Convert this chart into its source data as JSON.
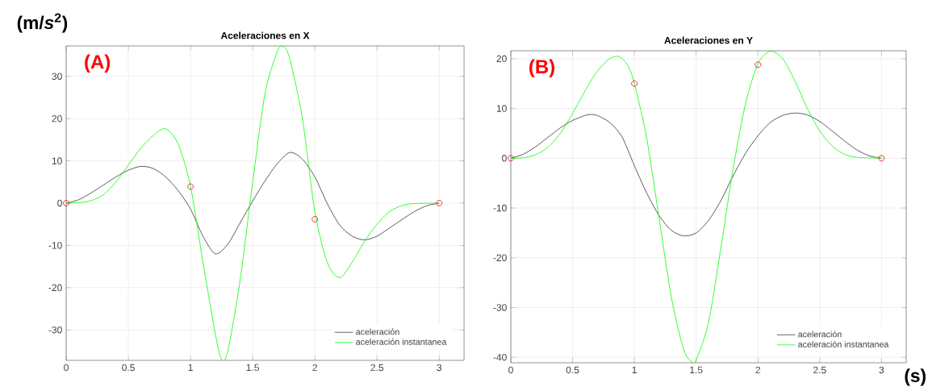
{
  "chart_data": [
    {
      "type": "line",
      "title": "Aceleraciones en X",
      "ylabel": "(m/*s*$^{2}$)",
      "annotations": [
        "(A)"
      ],
      "xlim": [
        0,
        3.2
      ],
      "ylim": [
        -37.2,
        37.2
      ],
      "xticks": [
        0,
        0.5,
        1,
        1.5,
        2,
        2.5,
        3
      ],
      "yticks": [
        -30,
        -20,
        -10,
        0,
        10,
        20,
        30
      ],
      "grid": true,
      "legend": "bottom right",
      "series": [
        {
          "name": "aceleración",
          "color": "#333333",
          "x": [
            0,
            0.1,
            0.2,
            0.3,
            0.4,
            0.5,
            0.6,
            0.7,
            0.8,
            0.9,
            1.0,
            1.1,
            1.2,
            1.3,
            1.4,
            1.5,
            1.6,
            1.7,
            1.8,
            1.9,
            2.0,
            2.1,
            2.2,
            2.3,
            2.4,
            2.5,
            2.6,
            2.7,
            2.8,
            2.9,
            3.0
          ],
          "values": [
            0,
            0.8,
            2.4,
            4.3,
            6.2,
            7.8,
            8.7,
            8.2,
            6.2,
            3,
            -1.4,
            -7.8,
            -12,
            -9.7,
            -4.6,
            0.5,
            5.3,
            9.4,
            12,
            10.4,
            6.2,
            -0.1,
            -5.2,
            -7.8,
            -8.7,
            -7.8,
            -5.9,
            -3.9,
            -2,
            -0.6,
            0
          ]
        },
        {
          "name": "aceleración instantanea",
          "color": "#00ff00",
          "x": [
            0,
            0.1,
            0.2,
            0.3,
            0.4,
            0.5,
            0.6,
            0.7,
            0.8,
            0.9,
            1.0,
            1.1,
            1.2,
            1.25,
            1.3,
            1.4,
            1.5,
            1.6,
            1.7,
            1.75,
            1.8,
            1.9,
            2.0,
            2.1,
            2.2,
            2.3,
            2.4,
            2.5,
            2.6,
            2.7,
            2.8,
            3.0
          ],
          "values": [
            0,
            0.1,
            0.6,
            2,
            5,
            9,
            13,
            16,
            17.6,
            14,
            4,
            -14,
            -31,
            -37,
            -35,
            -18,
            5,
            26,
            36,
            37,
            34,
            20,
            -2,
            -14,
            -17.6,
            -14,
            -9,
            -5,
            -2,
            -0.6,
            -0.1,
            0
          ]
        },
        {
          "type": "scatter",
          "marker": "circle",
          "color": "#ff0000",
          "x": [
            0,
            1,
            2,
            3
          ],
          "values": [
            0,
            3.9,
            -3.8,
            0
          ]
        }
      ]
    },
    {
      "type": "line",
      "title": "Aceleraciones en Y",
      "xlabel": "(s)",
      "annotations": [
        "(B)"
      ],
      "xlim": [
        0,
        3.2
      ],
      "ylim": [
        -41.1,
        21.6
      ],
      "xticks": [
        0,
        0.5,
        1,
        1.5,
        2,
        2.5,
        3
      ],
      "yticks": [
        -40,
        -30,
        -20,
        -10,
        0,
        10,
        20
      ],
      "grid": true,
      "legend": "bottom right",
      "series": [
        {
          "name": "aceleración",
          "color": "#333333",
          "x": [
            0,
            0.1,
            0.2,
            0.3,
            0.4,
            0.5,
            0.6,
            0.65,
            0.7,
            0.8,
            0.9,
            1.0,
            1.1,
            1.2,
            1.3,
            1.4,
            1.5,
            1.6,
            1.7,
            1.8,
            1.9,
            2.0,
            2.1,
            2.2,
            2.3,
            2.4,
            2.5,
            2.6,
            2.7,
            2.8,
            2.9,
            3.0
          ],
          "values": [
            0,
            0.8,
            2.3,
            4.2,
            6.1,
            7.6,
            8.6,
            8.8,
            8.6,
            7.2,
            4.3,
            -1.5,
            -7,
            -11.5,
            -14.5,
            -15.6,
            -15,
            -12.5,
            -8.5,
            -3.5,
            1,
            4.5,
            7.2,
            8.6,
            9.1,
            8.7,
            7.4,
            5.5,
            3.5,
            1.7,
            0.5,
            0
          ]
        },
        {
          "name": "aceleración instantanea",
          "color": "#00ff00",
          "x": [
            0,
            0.1,
            0.2,
            0.3,
            0.4,
            0.5,
            0.6,
            0.7,
            0.8,
            0.88,
            0.95,
            1.0,
            1.1,
            1.2,
            1.3,
            1.4,
            1.47,
            1.5,
            1.6,
            1.7,
            1.8,
            1.9,
            2.0,
            2.1,
            2.2,
            2.3,
            2.4,
            2.5,
            2.6,
            2.7,
            2.8,
            3.0
          ],
          "values": [
            0,
            0.1,
            0.7,
            2.2,
            5,
            9,
            13.5,
            17.5,
            20,
            20.4,
            18.5,
            15,
            4,
            -12,
            -28,
            -38.5,
            -41,
            -40.5,
            -33,
            -18,
            -2,
            11,
            19,
            21.5,
            20,
            15.5,
            10,
            5.5,
            2.5,
            0.8,
            0.2,
            0
          ]
        },
        {
          "type": "scatter",
          "marker": "circle",
          "color": "#ff0000",
          "x": [
            0,
            1,
            2,
            3
          ],
          "values": [
            0,
            15,
            18.8,
            0
          ]
        }
      ]
    }
  ]
}
